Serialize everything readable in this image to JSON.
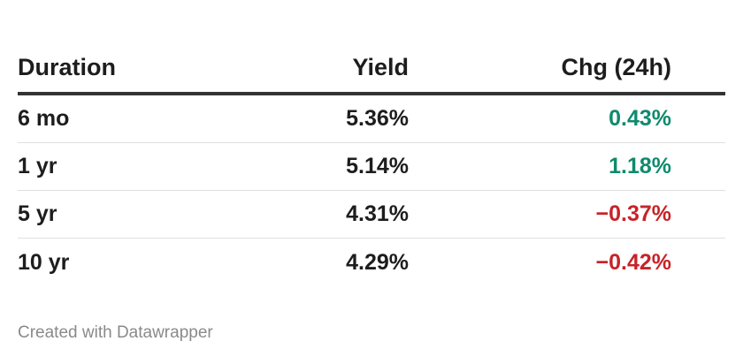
{
  "table": {
    "headers": {
      "duration": "Duration",
      "yield": "Yield",
      "change": "Chg (24h)"
    },
    "rows": [
      {
        "duration": "6 mo",
        "yield": "5.36%",
        "change": "0.43%",
        "direction": "positive"
      },
      {
        "duration": "1 yr",
        "yield": "5.14%",
        "change": "1.18%",
        "direction": "positive"
      },
      {
        "duration": "5 yr",
        "yield": "4.31%",
        "change": "−0.37%",
        "direction": "negative"
      },
      {
        "duration": "10 yr",
        "yield": "4.29%",
        "change": "−0.42%",
        "direction": "negative"
      }
    ]
  },
  "colors": {
    "positive": "#0f8a6e",
    "negative": "#c72328",
    "header_rule": "#333333"
  },
  "footer": {
    "credit": "Created with Datawrapper"
  }
}
